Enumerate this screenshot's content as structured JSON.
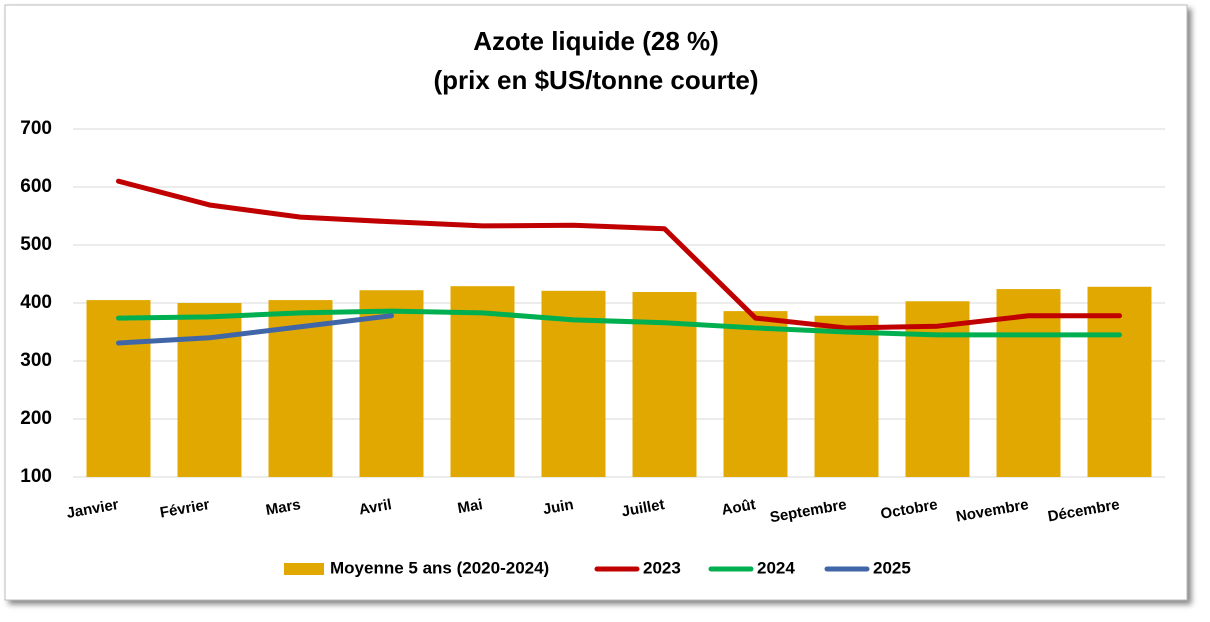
{
  "chart_data": {
    "type": "combo",
    "title": "Azote liquide (28 %)",
    "subtitle": "(prix en $US/tonne courte)",
    "categories": [
      "Janvier",
      "Février",
      "Mars",
      "Avril",
      "Mai",
      "Juin",
      "Juillet",
      "Août",
      "Septembre",
      "Octobre",
      "Novembre",
      "Décembre"
    ],
    "series": [
      {
        "name": "Moyenne 5 ans (2020-2024)",
        "type": "bar",
        "color": "#e0a800",
        "values": [
          405,
          400,
          405,
          422,
          429,
          421,
          419,
          386,
          378,
          403,
          424,
          428
        ]
      },
      {
        "name": "2023",
        "type": "line",
        "color": "#c00000",
        "values": [
          610,
          569,
          548,
          540,
          533,
          534,
          528,
          374,
          357,
          360,
          378,
          378
        ]
      },
      {
        "name": "2024",
        "type": "line",
        "color": "#00b050",
        "values": [
          374,
          376,
          383,
          386,
          383,
          371,
          366,
          357,
          350,
          345,
          345,
          345
        ]
      },
      {
        "name": "2025",
        "type": "line",
        "color": "#4166a8",
        "values": [
          331,
          340,
          359,
          378,
          null,
          null,
          null,
          null,
          null,
          null,
          null,
          null
        ]
      }
    ],
    "ylim": [
      100,
      700
    ],
    "yticks": [
      100,
      200,
      300,
      400,
      500,
      600,
      700
    ],
    "grid": true,
    "legend": "bottom"
  }
}
